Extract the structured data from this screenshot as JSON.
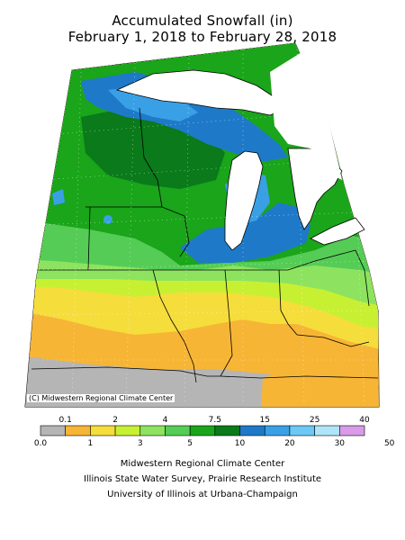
{
  "title": {
    "line1": "Accumulated Snowfall (in)",
    "line2": "February 1, 2018 to February 28, 2018"
  },
  "map": {
    "credit": "(C) Midwestern Regional Climate Center",
    "region_label": "Midwest United States snowfall analysis"
  },
  "legend": {
    "top_labels": [
      "0.1",
      "2",
      "4",
      "7.5",
      "15",
      "25",
      "40"
    ],
    "bottom_labels": [
      "0.0",
      "1",
      "3",
      "5",
      "10",
      "20",
      "30",
      "50"
    ],
    "colors": [
      "#b5b5b5",
      "#f7b535",
      "#f5dd3c",
      "#c8f032",
      "#8de35f",
      "#55cc55",
      "#1aa51a",
      "#0a7a1a",
      "#1e7ac8",
      "#3aa0e6",
      "#6cc8f5",
      "#b0e4f8",
      "#d99be8"
    ]
  },
  "footer": {
    "line1": "Midwestern Regional Climate Center",
    "line2": "Illinois State Water Survey, Prairie Research Institute",
    "line3": "University of Illinois at Urbana-Champaign"
  }
}
